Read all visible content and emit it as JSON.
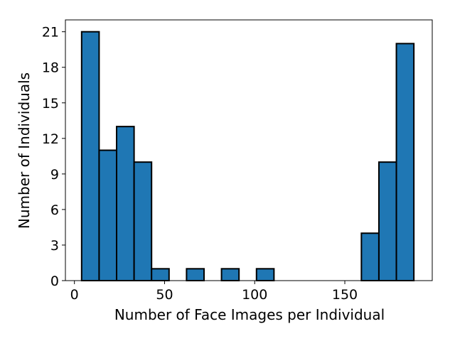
{
  "chart_data": {
    "type": "bar",
    "title": "",
    "xlabel": "Number of Face Images per Individual",
    "ylabel": "Number of Individuals",
    "bar_color": "#1f77b4",
    "edge_color": "#000000",
    "xlim": [
      -5,
      198.5
    ],
    "ylim": [
      0,
      22
    ],
    "x_ticks": [
      0,
      50,
      100,
      150
    ],
    "x_tick_labels": [
      "0",
      "50",
      "100",
      "150"
    ],
    "y_ticks": [
      0,
      3,
      6,
      9,
      12,
      15,
      18,
      21
    ],
    "y_tick_labels": [
      "0",
      "3",
      "6",
      "9",
      "12",
      "15",
      "18",
      "21"
    ],
    "grid": false,
    "bins": [
      {
        "start": 4.0,
        "end": 13.7,
        "count": 21
      },
      {
        "start": 13.7,
        "end": 23.4,
        "count": 11
      },
      {
        "start": 23.4,
        "end": 33.1,
        "count": 13
      },
      {
        "start": 33.1,
        "end": 42.8,
        "count": 10
      },
      {
        "start": 42.8,
        "end": 52.5,
        "count": 1
      },
      {
        "start": 52.5,
        "end": 62.2,
        "count": 0
      },
      {
        "start": 62.2,
        "end": 71.9,
        "count": 1
      },
      {
        "start": 71.9,
        "end": 81.6,
        "count": 0
      },
      {
        "start": 81.6,
        "end": 91.3,
        "count": 1
      },
      {
        "start": 91.3,
        "end": 101.0,
        "count": 0
      },
      {
        "start": 101.0,
        "end": 110.7,
        "count": 1
      },
      {
        "start": 110.7,
        "end": 120.4,
        "count": 0
      },
      {
        "start": 120.4,
        "end": 130.1,
        "count": 0
      },
      {
        "start": 130.1,
        "end": 139.8,
        "count": 0
      },
      {
        "start": 139.8,
        "end": 149.5,
        "count": 0
      },
      {
        "start": 149.5,
        "end": 159.2,
        "count": 0
      },
      {
        "start": 159.2,
        "end": 168.9,
        "count": 4
      },
      {
        "start": 168.9,
        "end": 178.6,
        "count": 10
      },
      {
        "start": 178.6,
        "end": 188.3,
        "count": 20
      }
    ]
  }
}
